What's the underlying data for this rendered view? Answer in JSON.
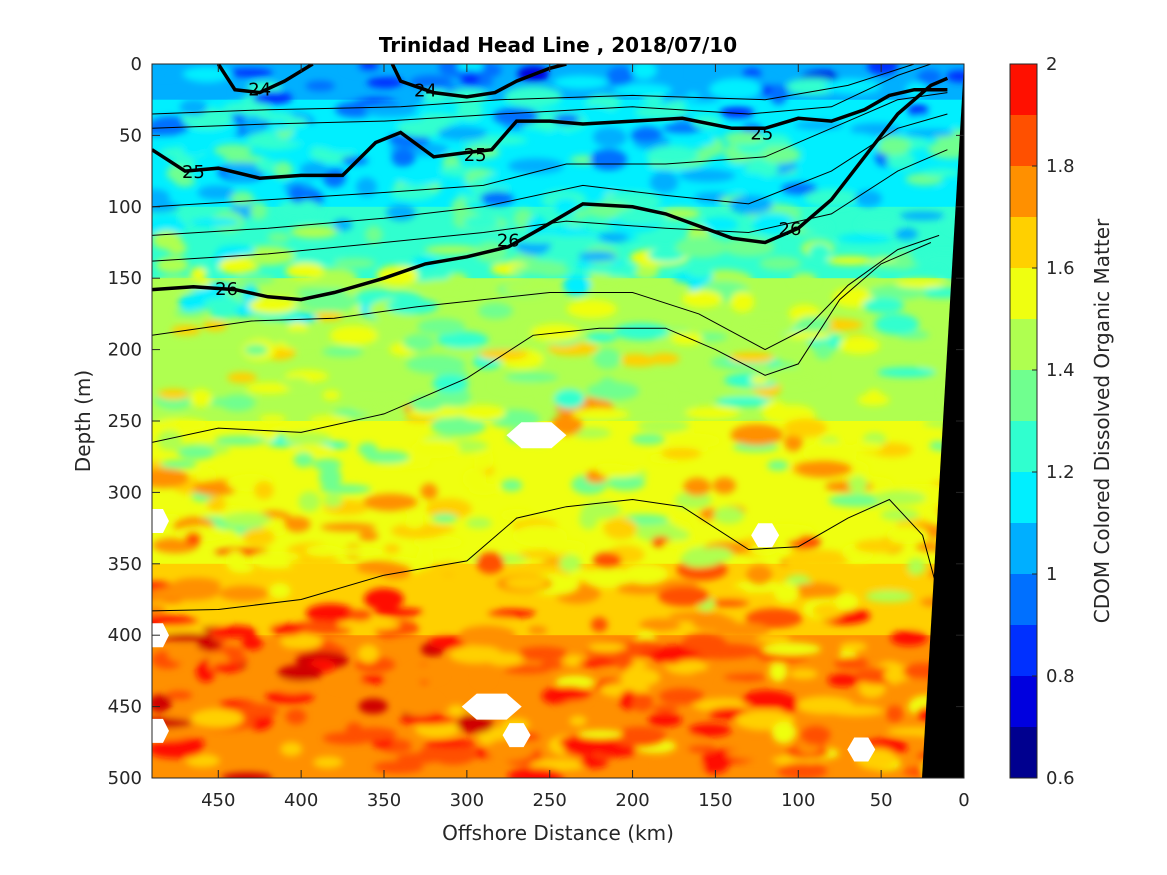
{
  "chart_data": {
    "type": "heatmap",
    "title": "Trinidad Head Line , 2018/07/10",
    "xlabel": "Offshore Distance (km)",
    "ylabel": "Depth (m)",
    "colorbar_label": "CDOM Colored Dissolved Organic Matter",
    "xlim": [
      490,
      0
    ],
    "x_reversed": true,
    "ylim": [
      0,
      500
    ],
    "y_reversed": true,
    "x_ticks": [
      450,
      400,
      350,
      300,
      250,
      200,
      150,
      100,
      50,
      0
    ],
    "x_tick_labels": [
      "450",
      "400",
      "350",
      "300",
      "250",
      "200",
      "150",
      "100",
      "50",
      "0"
    ],
    "y_ticks": [
      0,
      50,
      100,
      150,
      200,
      250,
      300,
      350,
      400,
      450,
      500
    ],
    "y_tick_labels": [
      "0",
      "50",
      "100",
      "150",
      "200",
      "250",
      "300",
      "350",
      "400",
      "450",
      "500"
    ],
    "colorbar": {
      "limits": [
        0.6,
        2.0
      ],
      "ticks": [
        0.6,
        0.8,
        1.0,
        1.2,
        1.4,
        1.6,
        1.8,
        2.0
      ],
      "tick_labels": [
        "0.6",
        "0.8",
        "1",
        "1.2",
        "1.4",
        "1.6",
        "1.8",
        "2"
      ],
      "levels": [
        0.6,
        0.7,
        0.8,
        0.9,
        1.0,
        1.1,
        1.2,
        1.3,
        1.4,
        1.5,
        1.6,
        1.7,
        1.8,
        1.9,
        2.0
      ],
      "colors": [
        "#00008f",
        "#0000df",
        "#0030ff",
        "#0070ff",
        "#00afff",
        "#00efff",
        "#30ffcf",
        "#70ff8f",
        "#afff50",
        "#efff10",
        "#ffd000",
        "#ff9000",
        "#ff5000",
        "#ff1000",
        "#cf0000"
      ]
    },
    "field_summary": [
      {
        "depth": 0,
        "cdom": 0.95
      },
      {
        "depth": 25,
        "cdom": 1.05
      },
      {
        "depth": 50,
        "cdom": 1.15
      },
      {
        "depth": 100,
        "cdom": 1.2
      },
      {
        "depth": 150,
        "cdom": 1.35
      },
      {
        "depth": 200,
        "cdom": 1.45
      },
      {
        "depth": 250,
        "cdom": 1.5
      },
      {
        "depth": 300,
        "cdom": 1.55
      },
      {
        "depth": 350,
        "cdom": 1.6
      },
      {
        "depth": 400,
        "cdom": 1.7
      },
      {
        "depth": 450,
        "cdom": 1.75
      },
      {
        "depth": 500,
        "cdom": 1.7
      }
    ],
    "density_contours": [
      {
        "level": "24",
        "labels_at": [
          [
            425,
            17
          ],
          [
            325,
            18
          ]
        ],
        "x": [
          450,
          440,
          425,
          410,
          393
        ],
        "y": [
          0,
          18,
          20,
          12,
          0
        ]
      },
      {
        "level": "24",
        "labels_at": [],
        "x": [
          345,
          340,
          320,
          300,
          283,
          270,
          250,
          240
        ],
        "y": [
          0,
          12,
          20,
          23,
          20,
          12,
          3,
          0
        ]
      },
      {
        "level": "25",
        "labels_at": [
          [
            465,
            75
          ],
          [
            295,
            63
          ],
          [
            122,
            48
          ]
        ],
        "x": [
          490,
          470,
          450,
          425,
          400,
          375,
          355,
          340,
          320,
          300,
          285,
          270,
          250,
          230,
          200,
          170,
          140,
          120,
          100,
          80,
          60,
          45,
          30,
          15,
          10
        ],
        "y": [
          60,
          75,
          73,
          80,
          78,
          78,
          55,
          48,
          65,
          62,
          60,
          40,
          40,
          42,
          40,
          38,
          45,
          45,
          38,
          40,
          32,
          22,
          18,
          18,
          18
        ]
      },
      {
        "level": "26",
        "labels_at": [
          [
            445,
            157
          ],
          [
            275,
            123
          ],
          [
            105,
            115
          ]
        ],
        "x": [
          490,
          465,
          440,
          420,
          400,
          380,
          350,
          325,
          300,
          275,
          255,
          230,
          200,
          180,
          140,
          120,
          100,
          80,
          60,
          40,
          20,
          10
        ],
        "y": [
          158,
          156,
          158,
          163,
          165,
          160,
          150,
          140,
          135,
          128,
          115,
          98,
          100,
          105,
          122,
          125,
          115,
          95,
          65,
          35,
          15,
          10
        ]
      }
    ],
    "annotations": [
      "24",
      "24",
      "25",
      "25",
      "25",
      "26",
      "26",
      "26"
    ]
  }
}
